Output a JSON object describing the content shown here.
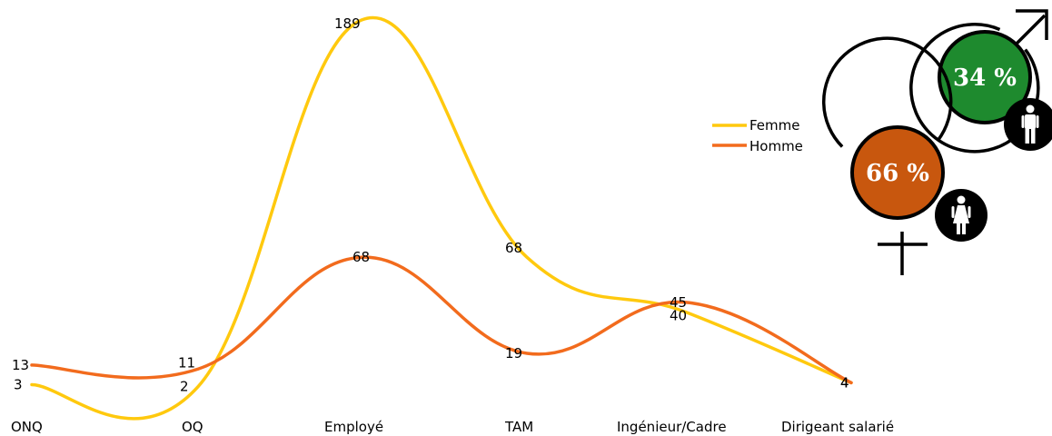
{
  "chart_data": {
    "type": "line",
    "categories": [
      "ONQ",
      "OQ",
      "Employé",
      "TAM",
      "Ingénieur/Cadre",
      "Dirigeant salarié"
    ],
    "series": [
      {
        "name": "Femme",
        "values": [
          3,
          2,
          189,
          68,
          40,
          4
        ],
        "color": "#FFC90E"
      },
      {
        "name": "Homme",
        "values": [
          13,
          11,
          68,
          19,
          45,
          4
        ],
        "color": "#F26B1D"
      }
    ],
    "ylim": [
      0,
      189
    ],
    "grid": false,
    "legend_position": "top-right"
  },
  "gender_share": {
    "homme": {
      "percent": "34 %",
      "color": "#1E8A2E",
      "icon": "man-icon",
      "symbol": "mars-symbol-icon"
    },
    "femme": {
      "percent": "66 %",
      "color": "#C8570E",
      "icon": "woman-icon",
      "symbol": "venus-symbol-icon"
    }
  }
}
